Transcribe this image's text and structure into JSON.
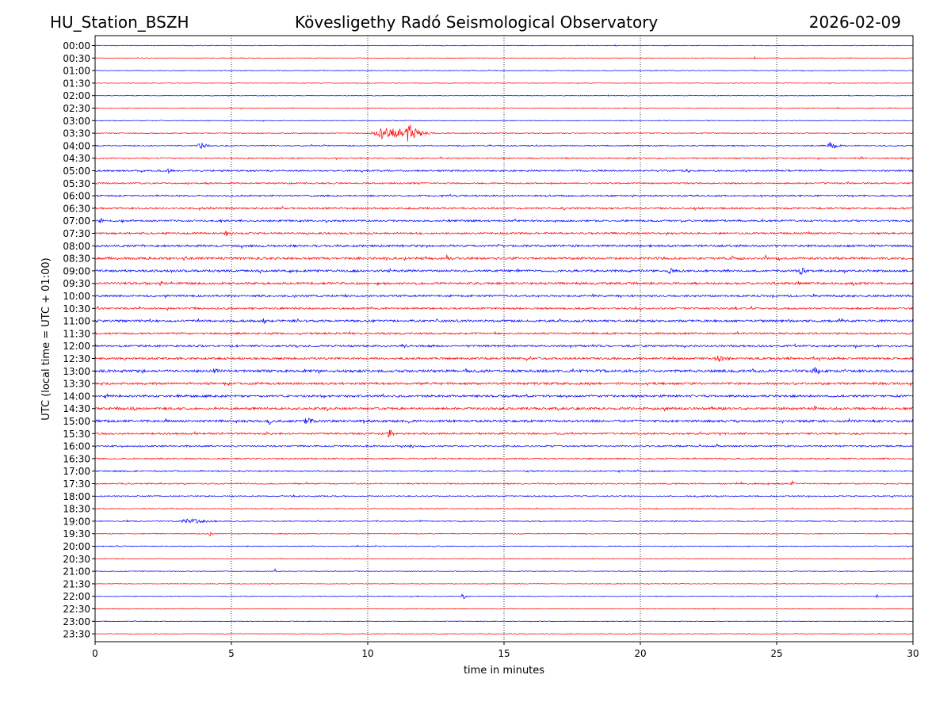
{
  "header": {
    "station": "HU_Station_BSZH",
    "title": "Kövesligethy Radó Seismological Observatory",
    "date": "2026-02-09"
  },
  "chart_data": {
    "type": "helicorder",
    "title": "Kövesligethy Radó Seismological Observatory",
    "station": "HU_Station_BSZH",
    "date": "2026-02-09",
    "xlabel": "time in minutes",
    "ylabel": "UTC (local time = UTC + 01:00)",
    "xlim": [
      0,
      30
    ],
    "xticks": [
      0,
      5,
      10,
      15,
      20,
      25,
      30
    ],
    "xtick_labels": [
      "0",
      "5",
      "10",
      "15",
      "20",
      "25",
      "30"
    ],
    "grid": "vertical dotted lines at 5, 10, 15, 20, 25",
    "trace_colors": [
      "#0000ff",
      "#ff0000"
    ],
    "row_labels": [
      "00:00",
      "00:30",
      "01:00",
      "01:30",
      "02:00",
      "02:30",
      "03:00",
      "03:30",
      "04:00",
      "04:30",
      "05:00",
      "05:30",
      "06:00",
      "06:30",
      "07:00",
      "07:30",
      "08:00",
      "08:30",
      "09:00",
      "09:30",
      "10:00",
      "10:30",
      "11:00",
      "11:30",
      "12:00",
      "12:30",
      "13:00",
      "13:30",
      "14:00",
      "14:30",
      "15:00",
      "15:30",
      "16:00",
      "16:30",
      "17:00",
      "17:30",
      "18:00",
      "18:30",
      "19:00",
      "19:30",
      "20:00",
      "20:30",
      "21:00",
      "21:30",
      "22:00",
      "22:30",
      "23:00",
      "23:30"
    ],
    "noise_level": [
      1,
      0.8,
      1,
      0.8,
      1,
      1,
      1,
      1.2,
      1.5,
      1.8,
      2.2,
      2,
      2.2,
      2.5,
      2.5,
      2.5,
      3,
      3.2,
      3,
      3,
      2.8,
      2.5,
      3,
      2.6,
      2.6,
      2.8,
      3.5,
      3,
      3,
      3.2,
      3.2,
      2.5,
      2.2,
      2,
      1.8,
      1.8,
      1.6,
      1.4,
      1.4,
      1.2,
      1.2,
      1,
      1,
      0.8,
      1,
      0.9,
      0.9,
      0.8
    ],
    "events": [
      {
        "row": "00:30",
        "minute": 24.2,
        "amplitude": 3.5,
        "duration_min": 0.1
      },
      {
        "row": "03:30",
        "minute": 10.7,
        "amplitude": 10,
        "duration_min": 2.2
      },
      {
        "row": "03:30",
        "minute": 11.5,
        "amplitude": 12,
        "duration_min": 1.0
      },
      {
        "row": "04:00",
        "minute": 3.9,
        "amplitude": 4,
        "duration_min": 0.8
      },
      {
        "row": "04:00",
        "minute": 27.0,
        "amplitude": 6,
        "duration_min": 0.6
      },
      {
        "row": "04:30",
        "minute": 28.1,
        "amplitude": 3.5,
        "duration_min": 0.3
      },
      {
        "row": "05:00",
        "minute": 2.7,
        "amplitude": 5,
        "duration_min": 0.4
      },
      {
        "row": "05:00",
        "minute": 21.7,
        "amplitude": 3.5,
        "duration_min": 0.4
      },
      {
        "row": "06:00",
        "minute": 24.5,
        "amplitude": 3.5,
        "duration_min": 0.4
      },
      {
        "row": "07:00",
        "minute": 0.2,
        "amplitude": 5,
        "duration_min": 0.3
      },
      {
        "row": "07:30",
        "minute": 4.8,
        "amplitude": 4.5,
        "duration_min": 0.3
      },
      {
        "row": "08:30",
        "minute": 12.9,
        "amplitude": 5,
        "duration_min": 0.4
      },
      {
        "row": "08:30",
        "minute": 24.6,
        "amplitude": 4,
        "duration_min": 0.2
      },
      {
        "row": "09:00",
        "minute": 21.1,
        "amplitude": 5,
        "duration_min": 0.5
      },
      {
        "row": "09:00",
        "minute": 25.9,
        "amplitude": 5.5,
        "duration_min": 0.5
      },
      {
        "row": "09:30",
        "minute": 2.4,
        "amplitude": 4,
        "duration_min": 0.5
      },
      {
        "row": "11:00",
        "minute": 6.2,
        "amplitude": 5,
        "duration_min": 0.3
      },
      {
        "row": "11:00",
        "minute": 2.0,
        "amplitude": 3.5,
        "duration_min": 0.3
      },
      {
        "row": "12:00",
        "minute": 11.3,
        "amplitude": 3.5,
        "duration_min": 0.4
      },
      {
        "row": "12:30",
        "minute": 22.9,
        "amplitude": 5,
        "duration_min": 1.0
      },
      {
        "row": "13:00",
        "minute": 26.4,
        "amplitude": 6,
        "duration_min": 0.6
      },
      {
        "row": "13:00",
        "minute": 4.4,
        "amplitude": 4,
        "duration_min": 0.6
      },
      {
        "row": "13:30",
        "minute": 29.9,
        "amplitude": 4,
        "duration_min": 0.2
      },
      {
        "row": "14:00",
        "minute": 0.4,
        "amplitude": 4,
        "duration_min": 0.4
      },
      {
        "row": "14:00",
        "minute": 17.3,
        "amplitude": 3.5,
        "duration_min": 0.3
      },
      {
        "row": "14:30",
        "minute": 1.4,
        "amplitude": 5,
        "duration_min": 0.5
      },
      {
        "row": "14:30",
        "minute": 26.4,
        "amplitude": 4,
        "duration_min": 0.4
      },
      {
        "row": "15:00",
        "minute": 7.8,
        "amplitude": 5,
        "duration_min": 1.0
      },
      {
        "row": "15:00",
        "minute": 6.4,
        "amplitude": 5,
        "duration_min": 0.4
      },
      {
        "row": "15:30",
        "minute": 10.8,
        "amplitude": 7,
        "duration_min": 0.4
      },
      {
        "row": "16:00",
        "minute": 11.6,
        "amplitude": 4,
        "duration_min": 0.3
      },
      {
        "row": "17:30",
        "minute": 25.6,
        "amplitude": 4,
        "duration_min": 0.4
      },
      {
        "row": "17:30",
        "minute": 23.7,
        "amplitude": 3,
        "duration_min": 0.2
      },
      {
        "row": "19:00",
        "minute": 3.5,
        "amplitude": 3.5,
        "duration_min": 2.0
      },
      {
        "row": "19:30",
        "minute": 4.2,
        "amplitude": 3,
        "duration_min": 0.4
      },
      {
        "row": "21:00",
        "minute": 6.6,
        "amplitude": 4,
        "duration_min": 0.1
      },
      {
        "row": "22:00",
        "minute": 13.5,
        "amplitude": 4,
        "duration_min": 0.4
      },
      {
        "row": "22:00",
        "minute": 28.7,
        "amplitude": 3,
        "duration_min": 0.2
      }
    ]
  }
}
